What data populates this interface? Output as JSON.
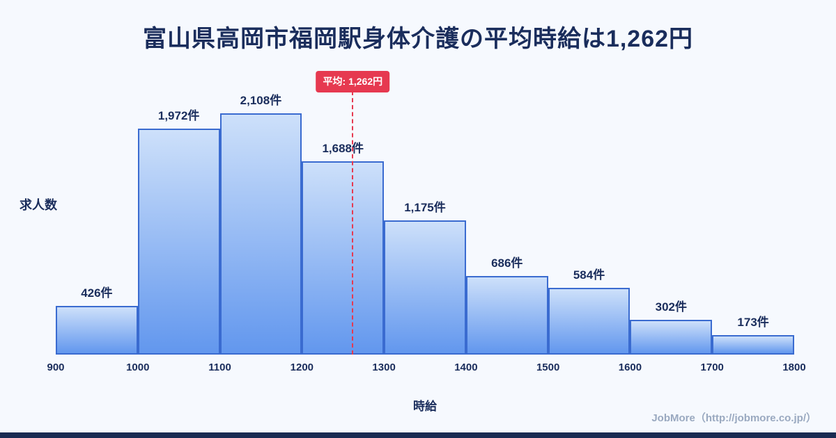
{
  "title": "富山県高岡市福岡駅身体介護の平均時給は1,262円",
  "chart_data": {
    "type": "bar",
    "title": "富山県高岡市福岡駅身体介護の平均時給は1,262円",
    "xlabel": "時給",
    "ylabel": "求人数",
    "x_ticks": [
      "900",
      "1000",
      "1100",
      "1200",
      "1300",
      "1400",
      "1500",
      "1600",
      "1700",
      "1800"
    ],
    "x_range": [
      900,
      1800
    ],
    "ylim": [
      0,
      2108
    ],
    "grid": false,
    "legend": "none",
    "bins": [
      {
        "range": [
          900,
          1000
        ],
        "count": 426,
        "label": "426件"
      },
      {
        "range": [
          1000,
          1100
        ],
        "count": 1972,
        "label": "1,972件"
      },
      {
        "range": [
          1100,
          1200
        ],
        "count": 2108,
        "label": "2,108件"
      },
      {
        "range": [
          1200,
          1300
        ],
        "count": 1688,
        "label": "1,688件"
      },
      {
        "range": [
          1300,
          1400
        ],
        "count": 1175,
        "label": "1,175件"
      },
      {
        "range": [
          1400,
          1500
        ],
        "count": 686,
        "label": "686件"
      },
      {
        "range": [
          1500,
          1600
        ],
        "count": 584,
        "label": "584件"
      },
      {
        "range": [
          1600,
          1700
        ],
        "count": 302,
        "label": "302件"
      },
      {
        "range": [
          1700,
          1800
        ],
        "count": 173,
        "label": "173件"
      }
    ],
    "average": {
      "value": 1262,
      "label": "平均: 1,262円"
    }
  },
  "footer": {
    "credit": "JobMore（http://jobmore.co.jp/）"
  },
  "colors": {
    "background": "#f6f9fe",
    "title_color": "#1a2d5c",
    "axis_text": "#1a2d5c",
    "bar_fill_top": "#cde0fa",
    "bar_fill_bottom": "#6297ee",
    "bar_border": "#3a6bd0",
    "average_red": "#e63950",
    "footer_text": "#9aa9c0",
    "bottom_strip": "#1a2b52"
  }
}
